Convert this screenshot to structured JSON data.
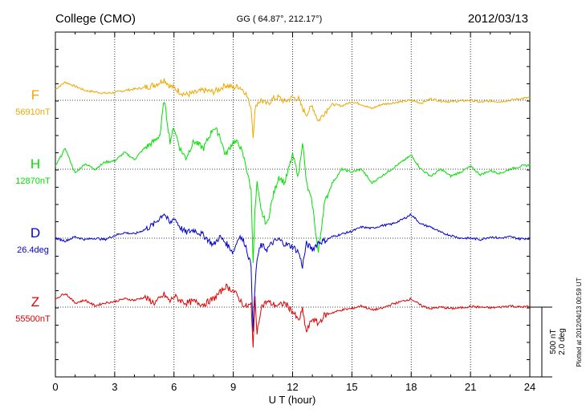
{
  "header": {
    "station": "College (CMO)",
    "coords": "GG ( 64.87°, 212.17°)",
    "date": "2012/03/13"
  },
  "plotted_at": "Plotted at 2012/04/13 00:59 UT",
  "scale": {
    "line1": "500 nT",
    "line2": "2.0 deg"
  },
  "colors": {
    "F": "#f0a800",
    "H": "#00e000",
    "D": "#0000d0",
    "Z": "#e00000",
    "axis": "#000000",
    "grid": "#000000"
  },
  "chart_data": {
    "type": "line",
    "title": "College (CMO)",
    "xlabel": "U T (hour)",
    "ylabel": "",
    "xlim": [
      0,
      24
    ],
    "xticks": [
      0,
      3,
      6,
      9,
      12,
      15,
      18,
      21,
      24
    ],
    "xtick_labels": [
      "0",
      "3",
      "6",
      "9",
      "12",
      "15",
      "18",
      "21",
      "24"
    ],
    "grid": true,
    "y_units": "offset from baseline (nT or deg)",
    "scale_bar": "500 nT / 2.0 deg",
    "series": [
      {
        "name": "F",
        "baseline_label": "56910nT",
        "color": "#f0a800",
        "order": 0,
        "x": [
          0,
          0.5,
          1,
          1.5,
          2,
          2.5,
          3,
          3.5,
          4,
          4.5,
          5,
          5.3,
          5.5,
          5.8,
          6,
          6.3,
          6.6,
          7,
          7.5,
          8,
          8.3,
          8.6,
          9,
          9.3,
          9.6,
          9.9,
          10,
          10.1,
          10.2,
          10.4,
          10.7,
          11,
          11.3,
          11.6,
          12,
          12.3,
          12.5,
          12.7,
          13,
          13.3,
          13.6,
          14,
          14.5,
          15,
          15.5,
          16,
          16.5,
          17,
          17.5,
          18,
          18.5,
          19,
          19.5,
          20,
          20.5,
          21,
          21.5,
          22,
          22.5,
          23,
          23.5,
          24
        ],
        "y": [
          80,
          130,
          100,
          70,
          60,
          50,
          55,
          70,
          80,
          90,
          110,
          130,
          150,
          100,
          90,
          60,
          40,
          50,
          70,
          60,
          80,
          110,
          90,
          100,
          60,
          -50,
          -250,
          -80,
          -20,
          0,
          -30,
          10,
          20,
          -10,
          20,
          10,
          -60,
          -100,
          -40,
          -150,
          -90,
          -30,
          -40,
          -10,
          -30,
          -60,
          -30,
          -20,
          -10,
          0,
          -20,
          10,
          -5,
          -10,
          -5,
          0,
          -15,
          -5,
          -10,
          0,
          10,
          20
        ]
      },
      {
        "name": "H",
        "baseline_label": "12870nT",
        "color": "#00e000",
        "order": 1,
        "x": [
          0,
          0.5,
          1,
          1.5,
          2,
          2.5,
          3,
          3.5,
          4,
          4.5,
          5,
          5.3,
          5.5,
          5.8,
          6,
          6.3,
          6.6,
          7,
          7.5,
          8,
          8.3,
          8.6,
          9,
          9.3,
          9.6,
          9.9,
          10,
          10.1,
          10.2,
          10.4,
          10.7,
          11,
          11.3,
          11.6,
          12,
          12.3,
          12.5,
          12.7,
          13,
          13.3,
          13.6,
          14,
          14.5,
          15,
          15.5,
          16,
          16.5,
          17,
          17.5,
          18,
          18.5,
          19,
          19.5,
          20,
          20.5,
          21,
          21.5,
          22,
          22.5,
          23,
          23.5,
          24
        ],
        "y": [
          20,
          150,
          -30,
          40,
          0,
          50,
          60,
          120,
          70,
          150,
          200,
          250,
          500,
          200,
          300,
          150,
          80,
          200,
          150,
          300,
          250,
          100,
          200,
          180,
          50,
          -150,
          -650,
          -300,
          -100,
          -300,
          -400,
          -200,
          -50,
          -100,
          100,
          -50,
          200,
          -100,
          -250,
          -600,
          -250,
          -100,
          0,
          -20,
          0,
          -100,
          -50,
          0,
          50,
          100,
          0,
          -50,
          0,
          -50,
          -20,
          20,
          -40,
          -10,
          -30,
          0,
          20,
          30
        ]
      },
      {
        "name": "D",
        "baseline_label": "26.4deg",
        "color": "#0000d0",
        "order": 2,
        "x": [
          0,
          0.5,
          1,
          1.5,
          2,
          2.5,
          3,
          3.5,
          4,
          4.5,
          5,
          5.3,
          5.5,
          5.8,
          6,
          6.3,
          6.6,
          7,
          7.5,
          8,
          8.3,
          8.6,
          9,
          9.3,
          9.6,
          9.9,
          10,
          10.1,
          10.2,
          10.4,
          10.7,
          11,
          11.3,
          11.6,
          12,
          12.3,
          12.5,
          12.7,
          13,
          13.3,
          13.6,
          14,
          14.5,
          15,
          15.5,
          16,
          16.5,
          17,
          17.5,
          18,
          18.5,
          19,
          19.5,
          20,
          20.5,
          21,
          21.5,
          22,
          22.5,
          23,
          23.5,
          24
        ],
        "y": [
          0,
          -20,
          10,
          -10,
          0,
          -10,
          20,
          40,
          30,
          60,
          100,
          150,
          180,
          100,
          150,
          80,
          40,
          60,
          20,
          -50,
          10,
          -30,
          -100,
          20,
          -40,
          -200,
          -650,
          -350,
          -150,
          -50,
          -80,
          -30,
          -10,
          -40,
          -60,
          -100,
          -200,
          -40,
          -80,
          -30,
          -20,
          10,
          30,
          50,
          80,
          70,
          90,
          100,
          130,
          170,
          100,
          80,
          40,
          20,
          0,
          0,
          -10,
          10,
          0,
          10,
          -5,
          0
        ]
      },
      {
        "name": "Z",
        "baseline_label": "55500nT",
        "color": "#e00000",
        "order": 3,
        "x": [
          0,
          0.5,
          1,
          1.5,
          2,
          2.5,
          3,
          3.5,
          4,
          4.5,
          5,
          5.3,
          5.5,
          5.8,
          6,
          6.3,
          6.6,
          7,
          7.5,
          8,
          8.3,
          8.6,
          9,
          9.3,
          9.6,
          9.9,
          10,
          10.1,
          10.2,
          10.4,
          10.7,
          11,
          11.3,
          11.6,
          12,
          12.3,
          12.5,
          12.7,
          13,
          13.3,
          13.6,
          14,
          14.5,
          15,
          15.5,
          16,
          16.5,
          17,
          17.5,
          18,
          18.5,
          19,
          19.5,
          20,
          20.5,
          21,
          21.5,
          22,
          22.5,
          23,
          23.5,
          24
        ],
        "y": [
          60,
          100,
          30,
          50,
          10,
          30,
          40,
          60,
          50,
          70,
          30,
          60,
          90,
          40,
          80,
          50,
          30,
          40,
          20,
          60,
          100,
          150,
          120,
          60,
          0,
          20,
          -300,
          100,
          -200,
          0,
          40,
          20,
          10,
          30,
          -30,
          -100,
          -20,
          -180,
          -80,
          -120,
          -60,
          -40,
          -20,
          -10,
          10,
          -20,
          -10,
          20,
          40,
          60,
          10,
          -10,
          0,
          -10,
          -5,
          5,
          0,
          -5,
          0,
          10,
          0,
          5
        ]
      }
    ]
  }
}
